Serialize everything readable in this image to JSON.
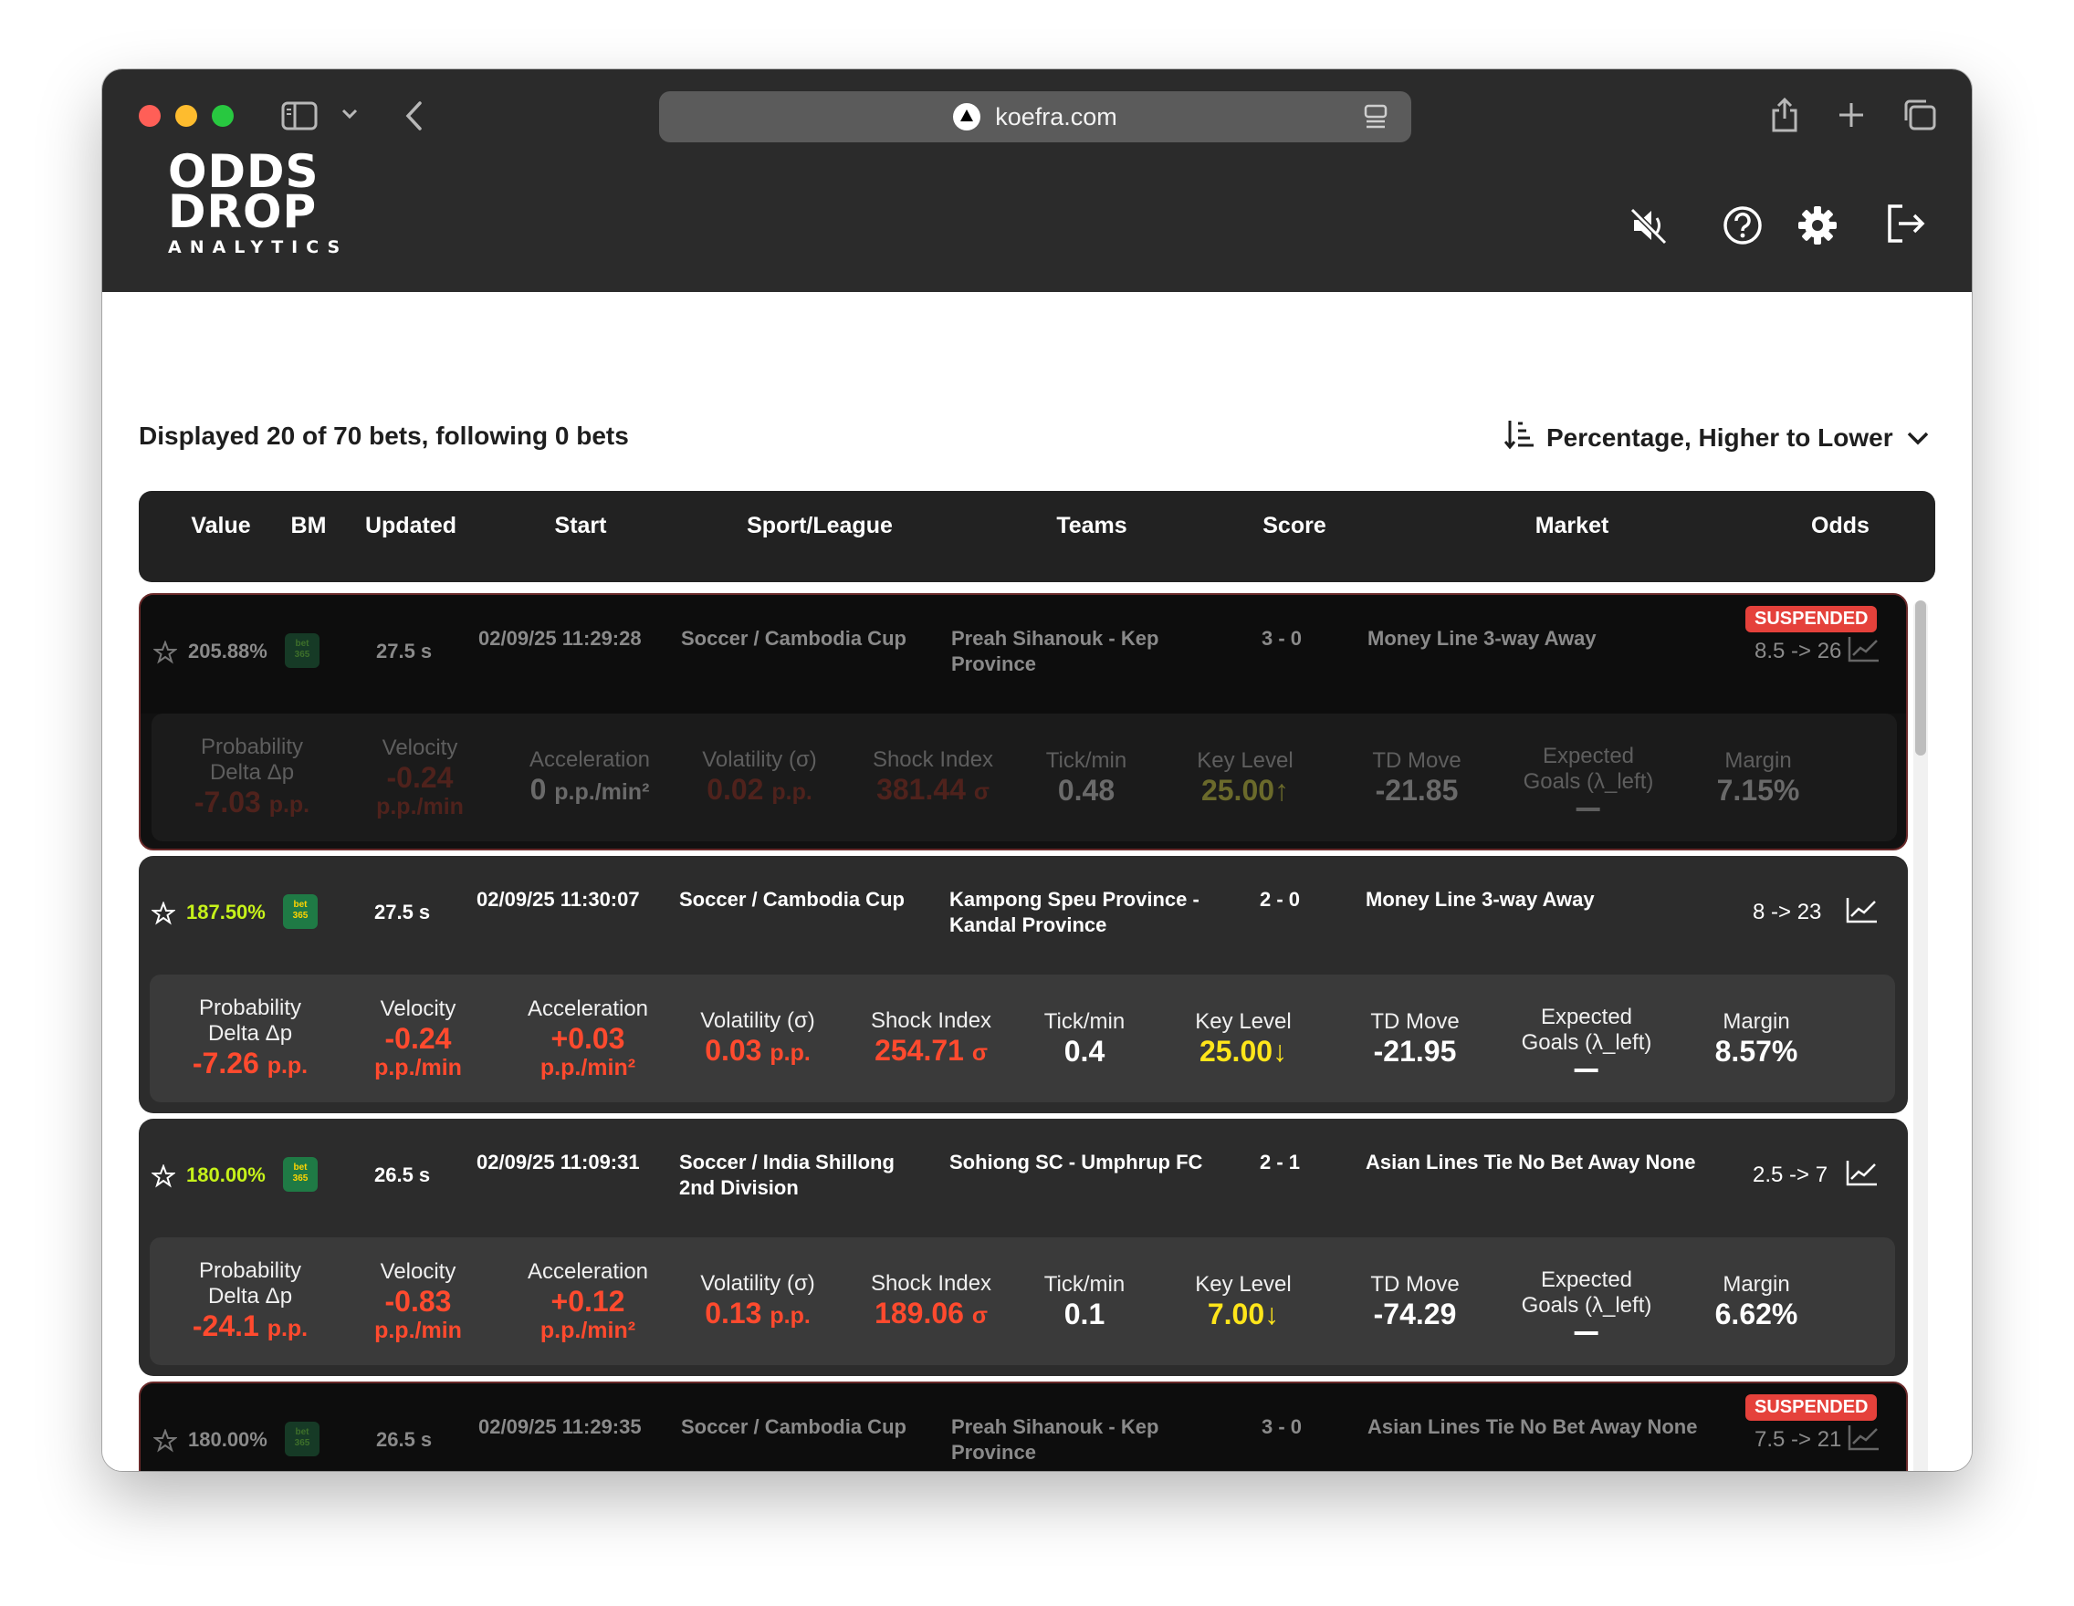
{
  "browser": {
    "url": "koefra.com"
  },
  "app": {
    "logo_line1": "ODDS",
    "logo_line2": "DROP",
    "logo_sub": "ANALYTICS",
    "header_icons": [
      "mute-icon",
      "help-icon",
      "gear-icon",
      "logout-icon"
    ]
  },
  "summary": "Displayed 20 of 70 bets, following 0 bets",
  "sort": {
    "label": "Percentage, Higher to Lower"
  },
  "columns": [
    "Value",
    "BM",
    "Updated",
    "Start",
    "Sport/League",
    "Teams",
    "Score",
    "Market",
    "Odds"
  ],
  "metric_labels": {
    "prob": [
      "Probability",
      "Delta Δp"
    ],
    "velocity": "Velocity",
    "accel": "Acceleration",
    "volatility": "Volatility (σ)",
    "shock": "Shock Index",
    "tick": "Tick/min",
    "key": "Key Level",
    "td": "TD Move",
    "xg": [
      "Expected",
      "Goals (λ_left)"
    ],
    "margin": "Margin"
  },
  "bets": [
    {
      "suspended": true,
      "suspended_label": "SUSPENDED",
      "value": "205.88%",
      "bm": [
        "bet",
        "365"
      ],
      "updated": "27.5 s",
      "start": "02/09/25 11:29:28",
      "league": "Soccer / Cambodia Cup",
      "teams": "Preah Sihanouk - Kep Province",
      "score": "3 - 0",
      "market": "Money Line 3-way Away",
      "odds": "8.5 -> 26",
      "prob": "-7.03",
      "prob_unit": "p.p.",
      "velocity": "-0.24",
      "velocity_unit": "p.p./min",
      "accel": "0",
      "accel_unit": "p.p./min²",
      "volatility": "0.02",
      "volatility_unit": "p.p.",
      "shock": "381.44",
      "shock_unit": "σ",
      "tick": "0.48",
      "key": "25.00",
      "key_arrow": "↑",
      "td": "-21.85",
      "margin": "7.15%"
    },
    {
      "suspended": false,
      "value": "187.50%",
      "bm": [
        "bet",
        "365"
      ],
      "updated": "27.5 s",
      "start": "02/09/25 11:30:07",
      "league": "Soccer / Cambodia Cup",
      "teams": "Kampong Speu Province - Kandal Province",
      "score": "2 - 0",
      "market": "Money Line 3-way Away",
      "odds": "8 -> 23",
      "prob": "-7.26",
      "prob_unit": "p.p.",
      "velocity": "-0.24",
      "velocity_unit": "p.p./min",
      "accel": "+0.03",
      "accel_unit": "p.p./min²",
      "volatility": "0.03",
      "volatility_unit": "p.p.",
      "shock": "254.71",
      "shock_unit": "σ",
      "tick": "0.4",
      "key": "25.00",
      "key_arrow": "↓",
      "td": "-21.95",
      "margin": "8.57%"
    },
    {
      "suspended": false,
      "value": "180.00%",
      "bm": [
        "bet",
        "365"
      ],
      "updated": "26.5 s",
      "start": "02/09/25 11:09:31",
      "league": "Soccer / India Shillong 2nd Division",
      "teams": "Sohiong SC - Umphrup FC",
      "score": "2 - 1",
      "market": "Asian Lines Tie No Bet Away None",
      "odds": "2.5 -> 7",
      "prob": "-24.1",
      "prob_unit": "p.p.",
      "velocity": "-0.83",
      "velocity_unit": "p.p./min",
      "accel": "+0.12",
      "accel_unit": "p.p./min²",
      "volatility": "0.13",
      "volatility_unit": "p.p.",
      "shock": "189.06",
      "shock_unit": "σ",
      "tick": "0.1",
      "key": "7.00",
      "key_arrow": "↓",
      "td": "-74.29",
      "margin": "6.62%"
    },
    {
      "suspended": true,
      "suspended_label": "SUSPENDED",
      "value": "180.00%",
      "bm": [
        "bet",
        "365"
      ],
      "updated": "26.5 s",
      "start": "02/09/25 11:29:35",
      "league": "Soccer / Cambodia Cup",
      "teams": "Preah Sihanouk - Kep Province",
      "score": "3 - 0",
      "market": "Asian Lines Tie No Bet Away None",
      "odds": "7.5 -> 21"
    }
  ]
}
